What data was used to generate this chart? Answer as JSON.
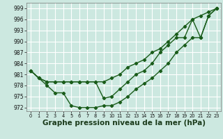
{
  "bg_color": "#cce8e0",
  "grid_color": "#b0d8d0",
  "line_color": "#1a5c1a",
  "marker": "D",
  "markersize": 2.2,
  "linewidth": 1.0,
  "xlabel": "Graphe pression niveau de la mer (hPa)",
  "xlabel_fontsize": 7.5,
  "yticks": [
    972,
    975,
    978,
    981,
    984,
    987,
    990,
    993,
    996,
    999
  ],
  "xticks": [
    0,
    1,
    2,
    3,
    4,
    5,
    6,
    7,
    8,
    9,
    10,
    11,
    12,
    13,
    14,
    15,
    16,
    17,
    18,
    19,
    20,
    21,
    22,
    23
  ],
  "ylim": [
    971.0,
    1000.5
  ],
  "xlim": [
    -0.5,
    23.5
  ],
  "line1": [
    982,
    980,
    979,
    979,
    979,
    979,
    979,
    979,
    979,
    979,
    980,
    981,
    983,
    984,
    985,
    987,
    988,
    990,
    992,
    994,
    996,
    997,
    998,
    999
  ],
  "line2": [
    982,
    980,
    979,
    979,
    979,
    979,
    979,
    979,
    979,
    974.5,
    975,
    977,
    979,
    981,
    982,
    984,
    987,
    989,
    991,
    991,
    996,
    991,
    997,
    999
  ],
  "line3": [
    982,
    980,
    978,
    976,
    976,
    972.5,
    972,
    972,
    972,
    972.5,
    972.5,
    973.5,
    975,
    977,
    978.5,
    980,
    982,
    984,
    987,
    989,
    991,
    991,
    997,
    999
  ]
}
